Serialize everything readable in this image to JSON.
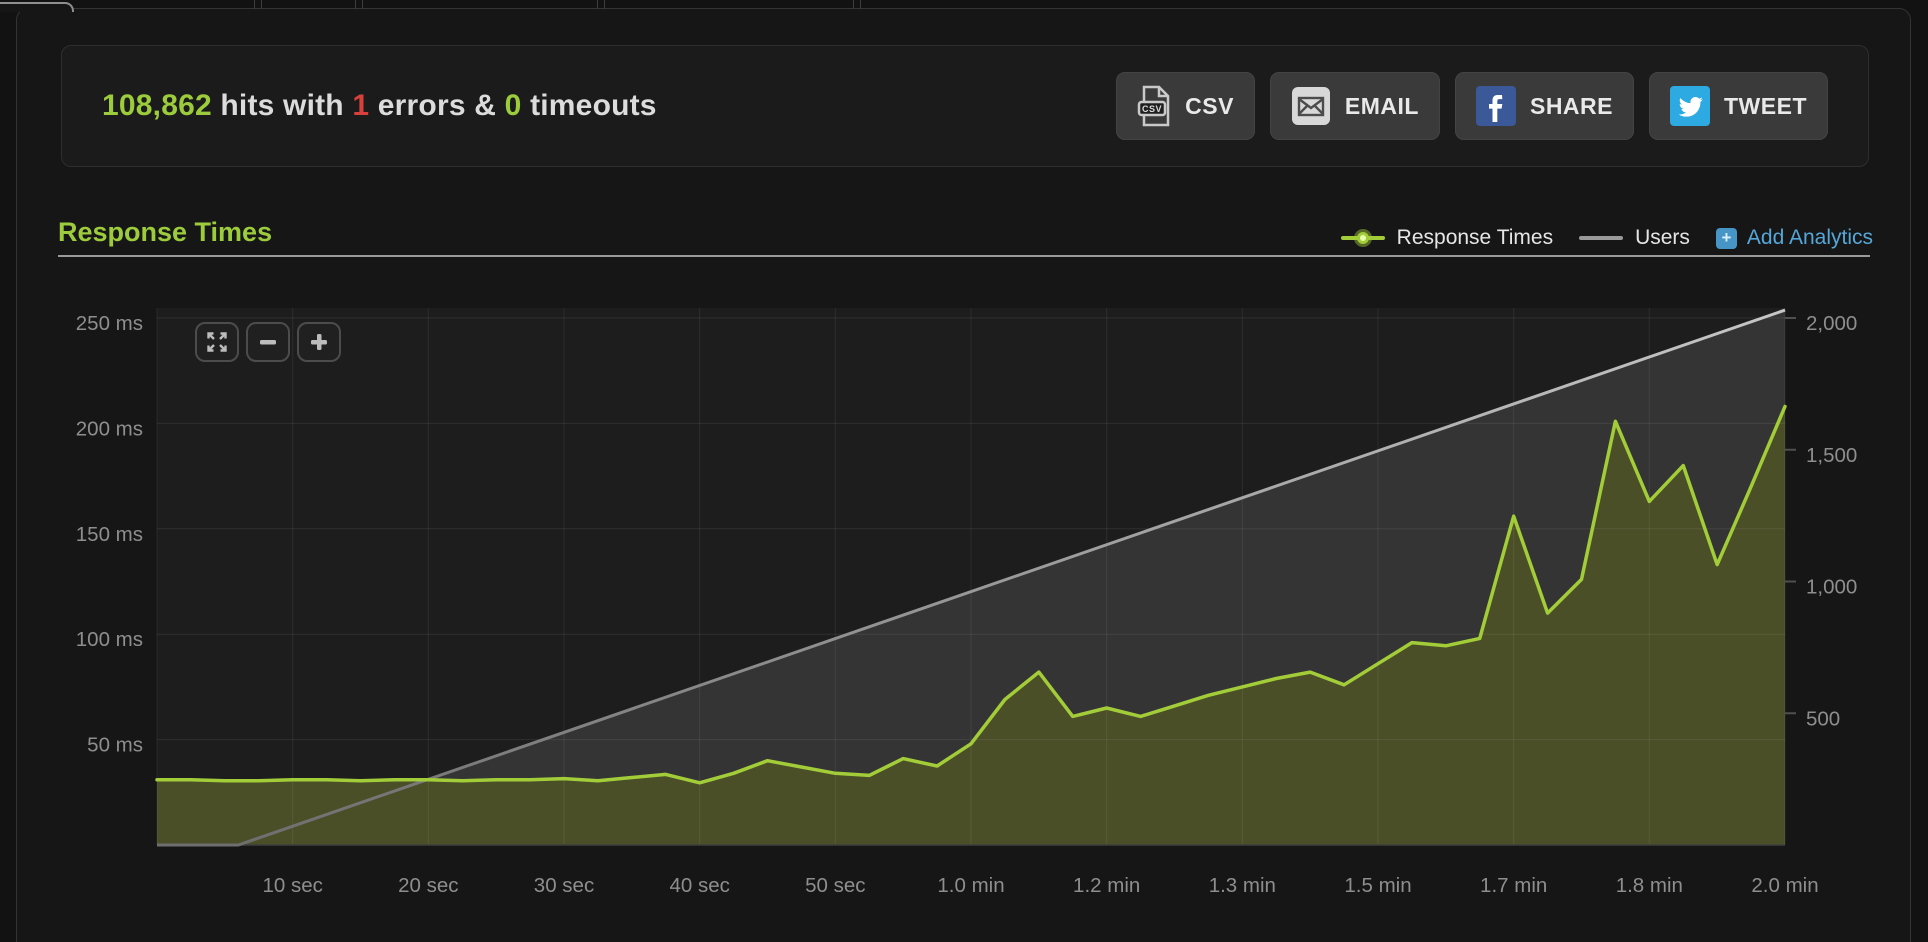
{
  "stats_bar": {
    "hits": "108,862",
    "hits_suffix": " hits with ",
    "errors": "1",
    "errors_suffix": " errors & ",
    "timeouts": "0",
    "timeouts_suffix": " timeouts",
    "buttons": [
      {
        "label": "CSV",
        "icon": "csv-file-icon"
      },
      {
        "label": "EMAIL",
        "icon": "envelope-icon"
      },
      {
        "label": "SHARE",
        "icon": "facebook-icon"
      },
      {
        "label": "TWEET",
        "icon": "twitter-icon"
      }
    ]
  },
  "section": {
    "title": "Response Times",
    "legend": [
      {
        "label": "Response Times",
        "color": "#a3cc39"
      },
      {
        "label": "Users",
        "color": "#9a9a9a"
      }
    ],
    "add_analytics_label": "Add Analytics"
  },
  "chart_controls": [
    {
      "icon": "expand-icon"
    },
    {
      "icon": "zoom-out-icon"
    },
    {
      "icon": "zoom-in-icon"
    }
  ],
  "colors": {
    "accent_green": "#a3cc39",
    "stats_green": "#9ccc3c",
    "error_red": "#d6413b",
    "link_blue": "#56a7d9",
    "users_gray": "#9a9a9a",
    "green_area_fill": "#4b4f28",
    "users_area_fill": "#343434",
    "facebook_blue": "#3b5998",
    "twitter_blue": "#2caae1"
  },
  "chart_data": {
    "type": "area",
    "title": "Response Times",
    "x_unit": "seconds",
    "x_range": [
      0,
      120
    ],
    "left_axis": {
      "label": "response time",
      "range_ms": [
        0,
        250
      ],
      "ticks": [
        {
          "v": 250,
          "label": "250 ms"
        },
        {
          "v": 200,
          "label": "200 ms"
        },
        {
          "v": 150,
          "label": "150 ms"
        },
        {
          "v": 100,
          "label": "100 ms"
        },
        {
          "v": 50,
          "label": "50 ms"
        }
      ]
    },
    "right_axis": {
      "label": "users",
      "range": [
        0,
        2000
      ],
      "ticks": [
        {
          "v": 2000,
          "label": "2,000"
        },
        {
          "v": 1500,
          "label": "1,500"
        },
        {
          "v": 1000,
          "label": "1,000"
        },
        {
          "v": 500,
          "label": "500"
        }
      ]
    },
    "x_ticks": [
      {
        "t": 10,
        "label": "10 sec"
      },
      {
        "t": 20,
        "label": "20 sec"
      },
      {
        "t": 30,
        "label": "30 sec"
      },
      {
        "t": 40,
        "label": "40 sec"
      },
      {
        "t": 50,
        "label": "50 sec"
      },
      {
        "t": 60,
        "label": "1.0 min"
      },
      {
        "t": 70,
        "label": "1.2 min"
      },
      {
        "t": 80,
        "label": "1.3 min"
      },
      {
        "t": 90,
        "label": "1.5 min"
      },
      {
        "t": 100,
        "label": "1.7 min"
      },
      {
        "t": 110,
        "label": "1.8 min"
      },
      {
        "t": 120,
        "label": "2.0 min"
      }
    ],
    "grid": true,
    "legend_position": "top-right",
    "series": [
      {
        "name": "Response Times",
        "axis": "left",
        "unit": "ms",
        "color": "#a3cc39",
        "fill": "#4b4f28",
        "points": [
          [
            0,
            31
          ],
          [
            2.5,
            31
          ],
          [
            5,
            30.5
          ],
          [
            7.5,
            30.5
          ],
          [
            10,
            31
          ],
          [
            12.5,
            31
          ],
          [
            15,
            30.5
          ],
          [
            17.5,
            31
          ],
          [
            20,
            31
          ],
          [
            22.5,
            30.5
          ],
          [
            25,
            31
          ],
          [
            27.5,
            31
          ],
          [
            30,
            31.5
          ],
          [
            32.5,
            30.5
          ],
          [
            35,
            32
          ],
          [
            37.5,
            33.5
          ],
          [
            40,
            29.5
          ],
          [
            42.5,
            34
          ],
          [
            45,
            40
          ],
          [
            47.5,
            37
          ],
          [
            50,
            34
          ],
          [
            52.5,
            33
          ],
          [
            55,
            41
          ],
          [
            57.5,
            37.5
          ],
          [
            60,
            48
          ],
          [
            62.5,
            69
          ],
          [
            65,
            82
          ],
          [
            67.5,
            61
          ],
          [
            70,
            65
          ],
          [
            72.5,
            61
          ],
          [
            75,
            66
          ],
          [
            77.5,
            71
          ],
          [
            80,
            75
          ],
          [
            82.5,
            79
          ],
          [
            85,
            82
          ],
          [
            87.5,
            76
          ],
          [
            90,
            86
          ],
          [
            92.5,
            96
          ],
          [
            95,
            94.5
          ],
          [
            97.5,
            98
          ],
          [
            100,
            156
          ],
          [
            102.5,
            110
          ],
          [
            105,
            126
          ],
          [
            107.5,
            201
          ],
          [
            110,
            163
          ],
          [
            112.5,
            180
          ],
          [
            115,
            133
          ],
          [
            117.5,
            170
          ],
          [
            120,
            208
          ]
        ]
      },
      {
        "name": "Users",
        "axis": "right",
        "unit": "users",
        "color": "#9a9a9a",
        "fill": "#343434",
        "points": [
          [
            0,
            0
          ],
          [
            6,
            0
          ],
          [
            120,
            2030
          ]
        ]
      }
    ]
  }
}
